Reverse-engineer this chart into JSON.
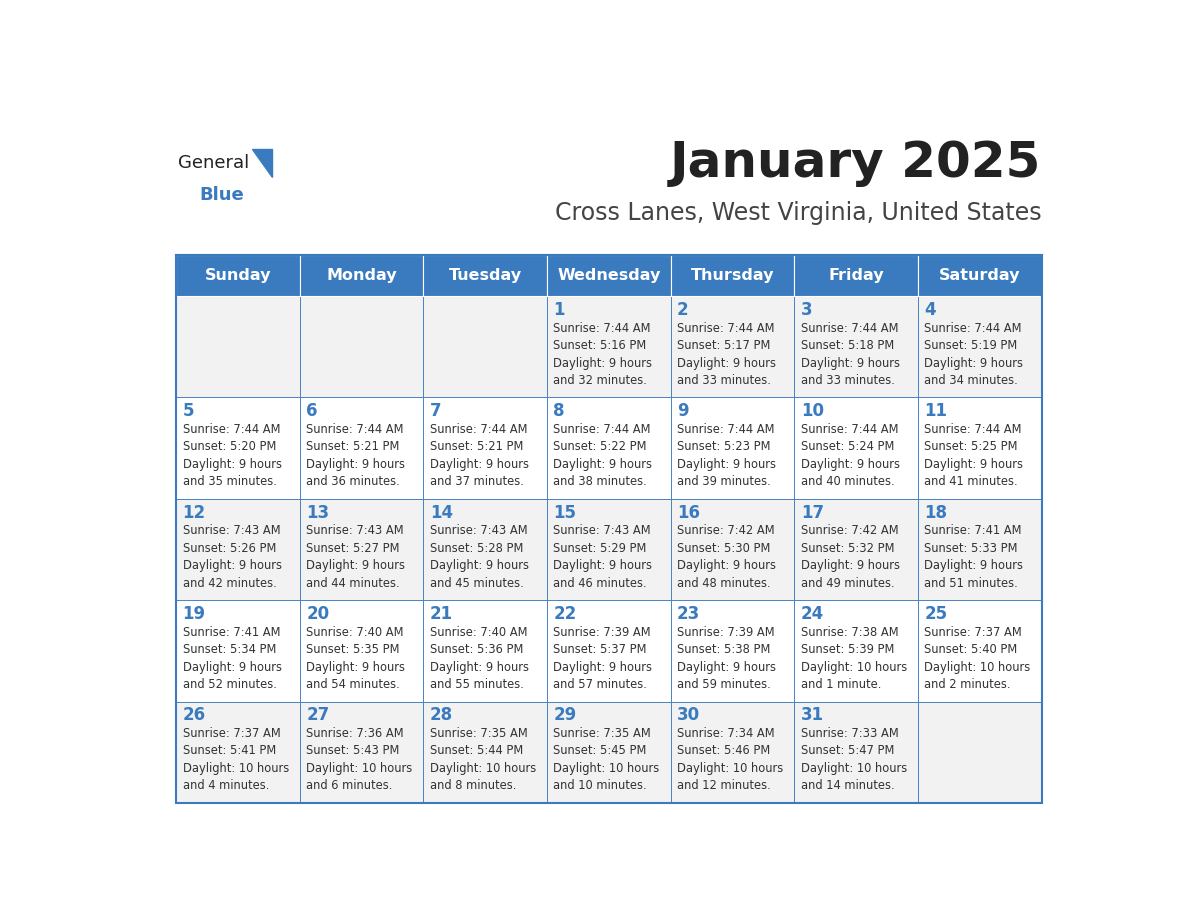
{
  "title": "January 2025",
  "subtitle": "Cross Lanes, West Virginia, United States",
  "header_color": "#3a7abf",
  "header_text_color": "#ffffff",
  "cell_bg_even": "#f2f2f2",
  "cell_bg_odd": "#ffffff",
  "day_text_color": "#3a7abf",
  "info_text_color": "#333333",
  "border_color": "#3a7abf",
  "days_of_week": [
    "Sunday",
    "Monday",
    "Tuesday",
    "Wednesday",
    "Thursday",
    "Friday",
    "Saturday"
  ],
  "weeks": [
    [
      {
        "day": null,
        "sunrise": null,
        "sunset": null,
        "daylight": null
      },
      {
        "day": null,
        "sunrise": null,
        "sunset": null,
        "daylight": null
      },
      {
        "day": null,
        "sunrise": null,
        "sunset": null,
        "daylight": null
      },
      {
        "day": 1,
        "sunrise": "7:44 AM",
        "sunset": "5:16 PM",
        "daylight": "9 hours\nand 32 minutes."
      },
      {
        "day": 2,
        "sunrise": "7:44 AM",
        "sunset": "5:17 PM",
        "daylight": "9 hours\nand 33 minutes."
      },
      {
        "day": 3,
        "sunrise": "7:44 AM",
        "sunset": "5:18 PM",
        "daylight": "9 hours\nand 33 minutes."
      },
      {
        "day": 4,
        "sunrise": "7:44 AM",
        "sunset": "5:19 PM",
        "daylight": "9 hours\nand 34 minutes."
      }
    ],
    [
      {
        "day": 5,
        "sunrise": "7:44 AM",
        "sunset": "5:20 PM",
        "daylight": "9 hours\nand 35 minutes."
      },
      {
        "day": 6,
        "sunrise": "7:44 AM",
        "sunset": "5:21 PM",
        "daylight": "9 hours\nand 36 minutes."
      },
      {
        "day": 7,
        "sunrise": "7:44 AM",
        "sunset": "5:21 PM",
        "daylight": "9 hours\nand 37 minutes."
      },
      {
        "day": 8,
        "sunrise": "7:44 AM",
        "sunset": "5:22 PM",
        "daylight": "9 hours\nand 38 minutes."
      },
      {
        "day": 9,
        "sunrise": "7:44 AM",
        "sunset": "5:23 PM",
        "daylight": "9 hours\nand 39 minutes."
      },
      {
        "day": 10,
        "sunrise": "7:44 AM",
        "sunset": "5:24 PM",
        "daylight": "9 hours\nand 40 minutes."
      },
      {
        "day": 11,
        "sunrise": "7:44 AM",
        "sunset": "5:25 PM",
        "daylight": "9 hours\nand 41 minutes."
      }
    ],
    [
      {
        "day": 12,
        "sunrise": "7:43 AM",
        "sunset": "5:26 PM",
        "daylight": "9 hours\nand 42 minutes."
      },
      {
        "day": 13,
        "sunrise": "7:43 AM",
        "sunset": "5:27 PM",
        "daylight": "9 hours\nand 44 minutes."
      },
      {
        "day": 14,
        "sunrise": "7:43 AM",
        "sunset": "5:28 PM",
        "daylight": "9 hours\nand 45 minutes."
      },
      {
        "day": 15,
        "sunrise": "7:43 AM",
        "sunset": "5:29 PM",
        "daylight": "9 hours\nand 46 minutes."
      },
      {
        "day": 16,
        "sunrise": "7:42 AM",
        "sunset": "5:30 PM",
        "daylight": "9 hours\nand 48 minutes."
      },
      {
        "day": 17,
        "sunrise": "7:42 AM",
        "sunset": "5:32 PM",
        "daylight": "9 hours\nand 49 minutes."
      },
      {
        "day": 18,
        "sunrise": "7:41 AM",
        "sunset": "5:33 PM",
        "daylight": "9 hours\nand 51 minutes."
      }
    ],
    [
      {
        "day": 19,
        "sunrise": "7:41 AM",
        "sunset": "5:34 PM",
        "daylight": "9 hours\nand 52 minutes."
      },
      {
        "day": 20,
        "sunrise": "7:40 AM",
        "sunset": "5:35 PM",
        "daylight": "9 hours\nand 54 minutes."
      },
      {
        "day": 21,
        "sunrise": "7:40 AM",
        "sunset": "5:36 PM",
        "daylight": "9 hours\nand 55 minutes."
      },
      {
        "day": 22,
        "sunrise": "7:39 AM",
        "sunset": "5:37 PM",
        "daylight": "9 hours\nand 57 minutes."
      },
      {
        "day": 23,
        "sunrise": "7:39 AM",
        "sunset": "5:38 PM",
        "daylight": "9 hours\nand 59 minutes."
      },
      {
        "day": 24,
        "sunrise": "7:38 AM",
        "sunset": "5:39 PM",
        "daylight": "10 hours\nand 1 minute."
      },
      {
        "day": 25,
        "sunrise": "7:37 AM",
        "sunset": "5:40 PM",
        "daylight": "10 hours\nand 2 minutes."
      }
    ],
    [
      {
        "day": 26,
        "sunrise": "7:37 AM",
        "sunset": "5:41 PM",
        "daylight": "10 hours\nand 4 minutes."
      },
      {
        "day": 27,
        "sunrise": "7:36 AM",
        "sunset": "5:43 PM",
        "daylight": "10 hours\nand 6 minutes."
      },
      {
        "day": 28,
        "sunrise": "7:35 AM",
        "sunset": "5:44 PM",
        "daylight": "10 hours\nand 8 minutes."
      },
      {
        "day": 29,
        "sunrise": "7:35 AM",
        "sunset": "5:45 PM",
        "daylight": "10 hours\nand 10 minutes."
      },
      {
        "day": 30,
        "sunrise": "7:34 AM",
        "sunset": "5:46 PM",
        "daylight": "10 hours\nand 12 minutes."
      },
      {
        "day": 31,
        "sunrise": "7:33 AM",
        "sunset": "5:47 PM",
        "daylight": "10 hours\nand 14 minutes."
      },
      {
        "day": null,
        "sunrise": null,
        "sunset": null,
        "daylight": null
      }
    ]
  ],
  "logo_text_general": "General",
  "logo_text_blue": "Blue",
  "logo_triangle_color": "#3a7abf"
}
